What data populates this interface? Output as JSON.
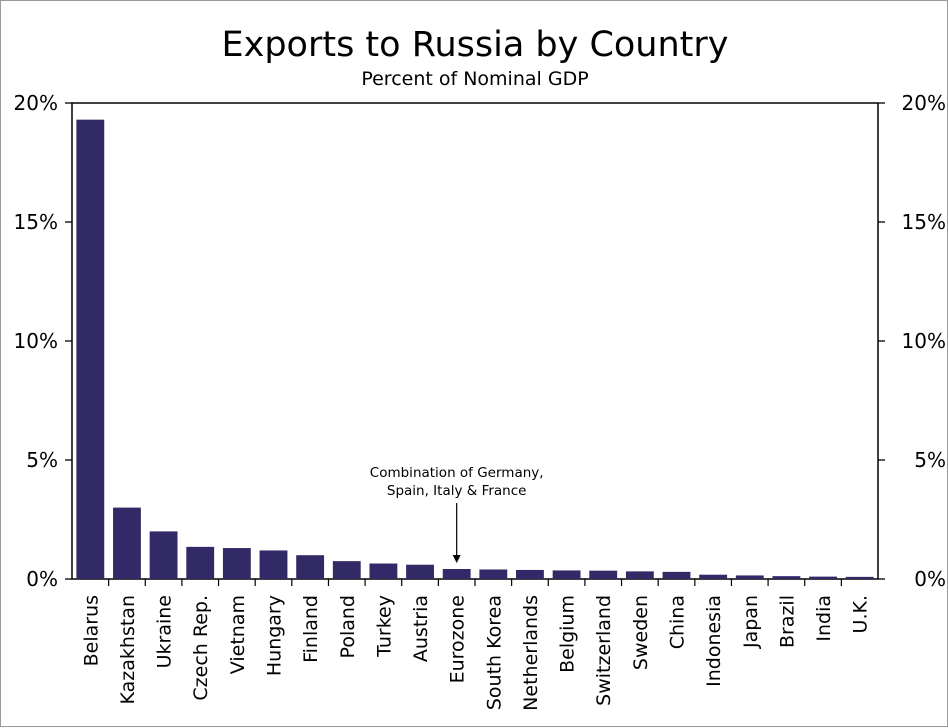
{
  "chart_data": {
    "type": "bar",
    "title": "Exports to Russia by Country",
    "subtitle": "Percent of Nominal GDP",
    "xlabel": "",
    "ylabel": "",
    "categories": [
      "Belarus",
      "Kazakhstan",
      "Ukraine",
      "Czech Rep.",
      "Vietnam",
      "Hungary",
      "Finland",
      "Poland",
      "Turkey",
      "Austria",
      "Eurozone",
      "South Korea",
      "Netherlands",
      "Belgium",
      "Switzerland",
      "Sweden",
      "China",
      "Indonesia",
      "Japan",
      "Brazil",
      "India",
      "U.K."
    ],
    "values": [
      19.3,
      3.0,
      2.0,
      1.35,
      1.3,
      1.2,
      1.0,
      0.75,
      0.65,
      0.6,
      0.42,
      0.4,
      0.38,
      0.36,
      0.35,
      0.32,
      0.3,
      0.18,
      0.15,
      0.12,
      0.1,
      0.09
    ],
    "ylim": [
      0,
      20
    ],
    "yticks": [
      0,
      5,
      10,
      15,
      20
    ],
    "ytick_labels": [
      "0%",
      "5%",
      "10%",
      "15%",
      "20%"
    ],
    "grid": false,
    "legend": "none",
    "bar_color": "#312a66",
    "annotation": {
      "lines": [
        "Combination of Germany,",
        "Spain, Italy & France"
      ],
      "target": "Eurozone"
    }
  }
}
